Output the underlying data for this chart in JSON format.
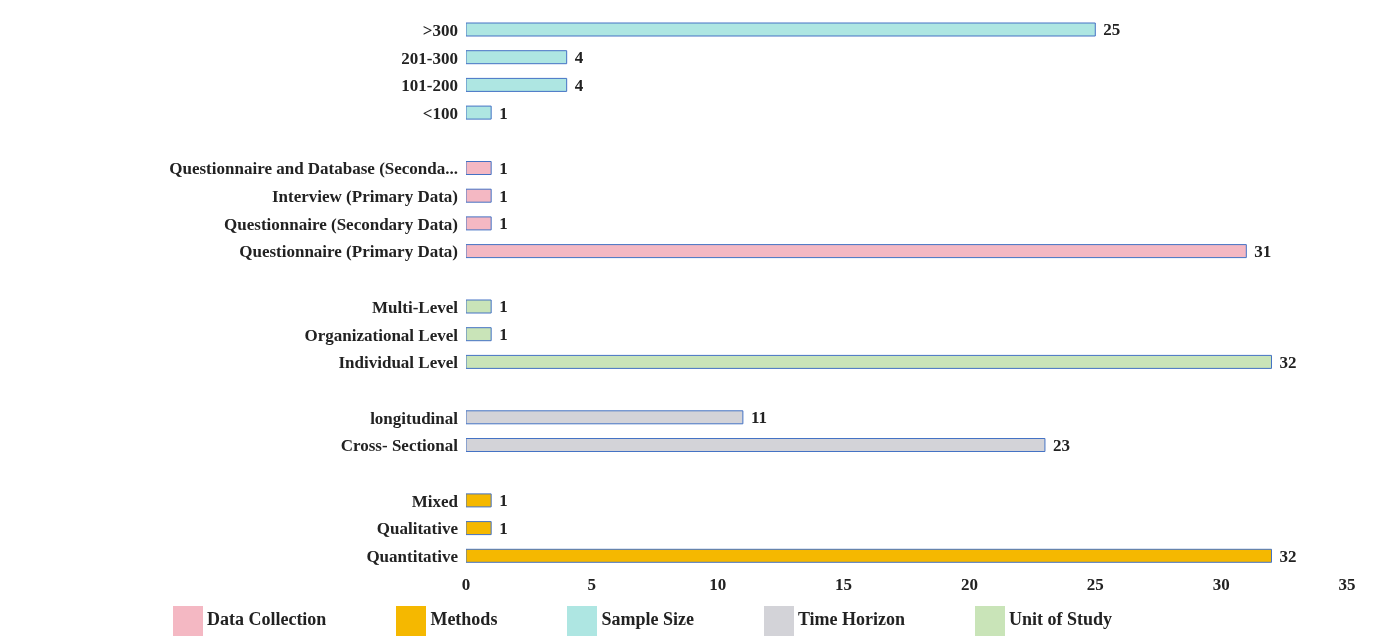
{
  "chart_data": {
    "type": "bar",
    "orientation": "horizontal",
    "stacked": true,
    "data_labels": true,
    "grid": false,
    "legend": "bottom",
    "categories": [
      ">300",
      "201-300",
      "101-200",
      "<100",
      null,
      "Questionnaire and Database (Seconda...",
      "Interview (Primary Data)",
      "Questionnaire (Secondary Data)",
      "Questionnaire (Primary Data)",
      null,
      "Multi-Level",
      "Organizational Level",
      "Individual Level",
      null,
      "longitudinal",
      "Cross- Sectional",
      null,
      "Mixed",
      "Qualitative",
      "Quantitative"
    ],
    "xlim": [
      0,
      35
    ],
    "xticks": [
      0,
      5,
      10,
      15,
      20,
      25,
      30,
      35
    ],
    "series": [
      {
        "name": "Methods",
        "color": "#f5b800",
        "values": [
          null,
          null,
          null,
          null,
          null,
          null,
          null,
          null,
          null,
          null,
          null,
          null,
          null,
          null,
          null,
          null,
          null,
          1,
          1,
          32
        ]
      },
      {
        "name": "Time Horizon",
        "color": "#d3d3d8",
        "values": [
          null,
          null,
          null,
          null,
          null,
          null,
          null,
          null,
          null,
          null,
          null,
          null,
          null,
          null,
          11,
          23,
          null,
          null,
          null,
          null
        ]
      },
      {
        "name": "Unit of Study",
        "color": "#c9e4b8",
        "values": [
          null,
          null,
          null,
          null,
          null,
          null,
          null,
          null,
          null,
          null,
          1,
          1,
          32,
          null,
          null,
          null,
          null,
          null,
          null,
          null
        ]
      },
      {
        "name": "Data Collection",
        "color": "#f4b8c3",
        "values": [
          null,
          null,
          null,
          null,
          null,
          1,
          1,
          1,
          31,
          null,
          null,
          null,
          null,
          null,
          null,
          null,
          null,
          null,
          null,
          null
        ]
      },
      {
        "name": "Sample Size",
        "color": "#aee6e2",
        "values": [
          25,
          4,
          4,
          1,
          null,
          null,
          null,
          null,
          null,
          null,
          null,
          null,
          null,
          null,
          null,
          null,
          null,
          null,
          null,
          null
        ]
      }
    ]
  }
}
